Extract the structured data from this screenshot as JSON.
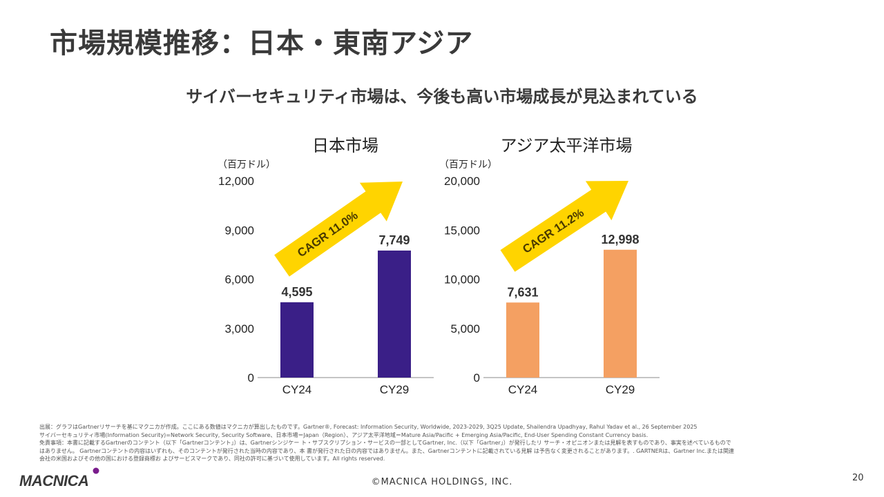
{
  "slide": {
    "title": "市場規模推移：日本・東南アジア",
    "subtitle": "サイバーセキュリティ市場は、今後も高い市場成長が見込まれている"
  },
  "chart_data": [
    {
      "type": "bar",
      "title": "日本市場",
      "unit": "（百万ドル）",
      "categories": [
        "CY24",
        "CY29"
      ],
      "values": [
        4595,
        7749
      ],
      "value_labels": [
        "4,595",
        "7,749"
      ],
      "ylim": [
        0,
        12000
      ],
      "yticks": [
        0,
        3000,
        6000,
        9000,
        12000
      ],
      "ytick_labels": [
        "0",
        "3,000",
        "6,000",
        "9,000",
        "12,000"
      ],
      "bar_color": "#3a1f87",
      "annotation": "CAGR 11.0%",
      "grid": false
    },
    {
      "type": "bar",
      "title": "アジア太平洋市場",
      "unit": "（百万ドル）",
      "categories": [
        "CY24",
        "CY29"
      ],
      "values": [
        7631,
        12998
      ],
      "value_labels": [
        "7,631",
        "12,998"
      ],
      "ylim": [
        0,
        20000
      ],
      "yticks": [
        0,
        5000,
        10000,
        15000,
        20000
      ],
      "ytick_labels": [
        "0",
        "5,000",
        "10,000",
        "15,000",
        "20,000"
      ],
      "bar_color": "#f4a062",
      "annotation": "CAGR 11.2%",
      "grid": false
    }
  ],
  "arrow_color": "#ffd400",
  "footer": {
    "notes": [
      "出展：グラフはGartnerリサーチを基にマクニカが作成。ここにある数値はマクニカが算出したものです。Gartner®, Forecast: Information Security, Worldwide, 2023-2029, 3Q25 Update, Shailendra Upadhyay, Rahul Yadav et al., 26 September 2025",
      "サイバーセキュリティ市場(Information Security)=Network Security, Security Software、日本市場＝Japan（Region）、アジア太平洋地域＝Mature Asia/Pacific + Emerging Asia/Pacific, End-User Spending Constant Currency basis.",
      "免責事項：本書に記載するGartnerのコンテント（以下「Gartnerコンテント」）は、Gartnerシンジケー ト・サブスクリプション・サービスの一部としてGartner, Inc.（以下「Gartner」）が発行したリ サーチ・オピニオンまたは見解を表すものであり、事実を述べているもので",
      "はありません。 Gartnerコンテントの内容はいずれも、そのコンテントが発行された当時の内容であり、本 書が発行された日の内容ではありません。また、Gartnerコンテントに記載されている見解 は予告なく変更されることがあります。. GARTNERは、Gartner Inc.または関連",
      "会社の米国およびその他の国における登録商標お よびサービスマークであり、同社の許可に基づいて使用しています。All rights reserved."
    ],
    "logo_text": "MACNICA",
    "copyright": "©MACNICA HOLDINGS, INC.",
    "page_number": "20"
  }
}
